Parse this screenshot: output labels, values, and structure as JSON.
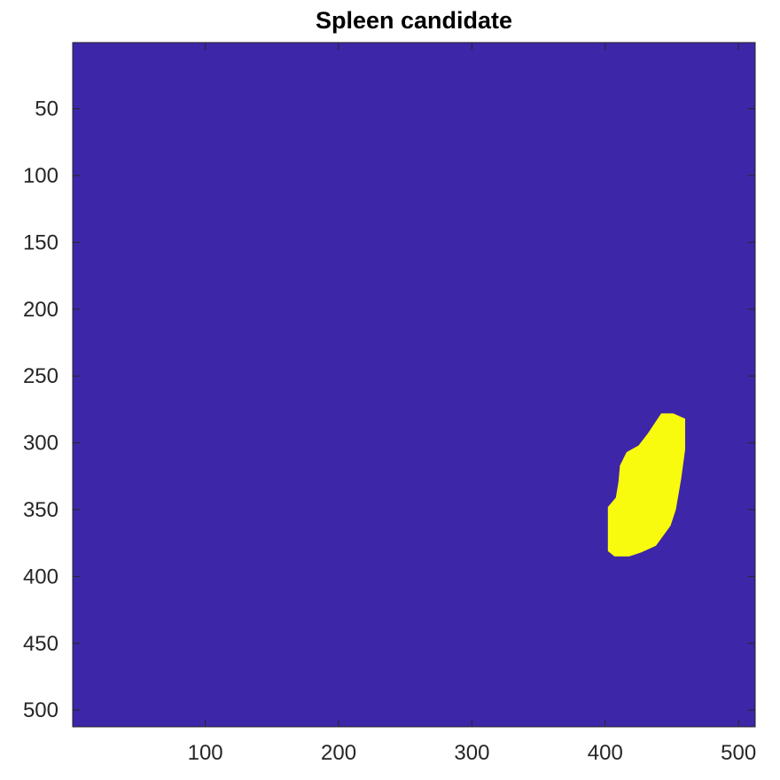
{
  "chart_data": {
    "type": "heatmap",
    "title": "Spleen candidate",
    "xlabel": "",
    "ylabel": "",
    "xlim": [
      0.5,
      512.5
    ],
    "ylim": [
      0.5,
      512.5
    ],
    "y_reversed": true,
    "grid": false,
    "xticks": [
      100,
      200,
      300,
      400,
      500
    ],
    "yticks": [
      50,
      100,
      150,
      200,
      250,
      300,
      350,
      400,
      450,
      500
    ],
    "colormap": {
      "0": "#3e26a8",
      "1": "#f9fb0e"
    },
    "background_value": 0,
    "region": {
      "value": 1,
      "label": "",
      "outline": [
        [
          442,
          278
        ],
        [
          451,
          278
        ],
        [
          460,
          282
        ],
        [
          460,
          305
        ],
        [
          457,
          327
        ],
        [
          453,
          350
        ],
        [
          449,
          362
        ],
        [
          438,
          377
        ],
        [
          427,
          382
        ],
        [
          418,
          385
        ],
        [
          407,
          385
        ],
        [
          402,
          381
        ],
        [
          402,
          348
        ],
        [
          408,
          341
        ],
        [
          410,
          329
        ],
        [
          411,
          317
        ],
        [
          416,
          307
        ],
        [
          425,
          302
        ],
        [
          432,
          293
        ]
      ]
    }
  }
}
